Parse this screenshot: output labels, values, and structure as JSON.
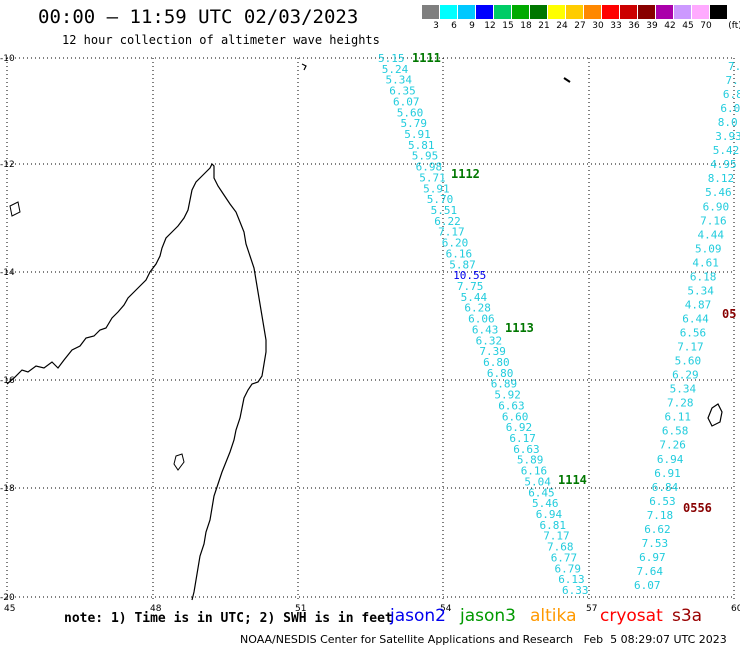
{
  "header": {
    "title": "00:00 — 11:59 UTC 02/03/2023",
    "subtitle": "12 hour collection of altimeter wave heights"
  },
  "colorbar": {
    "unit": "(ft)",
    "entries": [
      {
        "label": "3",
        "color": "#7f7f7f"
      },
      {
        "label": "6",
        "color": "#00ffff"
      },
      {
        "label": "9",
        "color": "#00c8ff"
      },
      {
        "label": "12",
        "color": "#0000ff"
      },
      {
        "label": "15",
        "color": "#00cc66"
      },
      {
        "label": "18",
        "color": "#00aa00"
      },
      {
        "label": "21",
        "color": "#007700"
      },
      {
        "label": "24",
        "color": "#ffff00"
      },
      {
        "label": "27",
        "color": "#ffcc00"
      },
      {
        "label": "30",
        "color": "#ff8800"
      },
      {
        "label": "33",
        "color": "#ff0000"
      },
      {
        "label": "36",
        "color": "#cc0000"
      },
      {
        "label": "39",
        "color": "#880000"
      },
      {
        "label": "42",
        "color": "#aa00aa"
      },
      {
        "label": "45",
        "color": "#cc99ff"
      },
      {
        "label": "70",
        "color": "#ffaaff"
      },
      {
        "label": "",
        "color": "#000000"
      }
    ]
  },
  "axes": {
    "lon_ticks": [
      "45",
      "48",
      "51",
      "54",
      "57",
      "60"
    ],
    "lat_ticks": [
      "-10",
      "-12",
      "-14",
      "-16",
      "-18",
      "-20"
    ]
  },
  "colors": {
    "cyan": "#22ccdd",
    "blue": "#0000ee",
    "green": "#007700",
    "darkred": "#880000"
  },
  "tracks": {
    "left_track": [
      {
        "v": "5.15",
        "c": "cyan"
      },
      {
        "v": "5.24",
        "c": "cyan"
      },
      {
        "v": "5.34",
        "c": "cyan"
      },
      {
        "v": "6.35",
        "c": "cyan"
      },
      {
        "v": "6.07",
        "c": "cyan"
      },
      {
        "v": "5.60",
        "c": "cyan"
      },
      {
        "v": "5.79",
        "c": "cyan"
      },
      {
        "v": "5.91",
        "c": "cyan"
      },
      {
        "v": "5.81",
        "c": "cyan"
      },
      {
        "v": "5.95",
        "c": "cyan"
      },
      {
        "v": "6.98",
        "c": "cyan"
      },
      {
        "v": "5.71",
        "c": "cyan"
      },
      {
        "v": "5.91",
        "c": "cyan"
      },
      {
        "v": "5.70",
        "c": "cyan"
      },
      {
        "v": "5.51",
        "c": "cyan"
      },
      {
        "v": "6.22",
        "c": "cyan"
      },
      {
        "v": "7.17",
        "c": "cyan"
      },
      {
        "v": "6.20",
        "c": "cyan"
      },
      {
        "v": "6.16",
        "c": "cyan"
      },
      {
        "v": "5.87",
        "c": "cyan"
      },
      {
        "v": "10.55",
        "c": "blue"
      },
      {
        "v": "7.75",
        "c": "cyan"
      },
      {
        "v": "5.44",
        "c": "cyan"
      },
      {
        "v": "6.28",
        "c": "cyan"
      },
      {
        "v": "6.06",
        "c": "cyan"
      },
      {
        "v": "6.43",
        "c": "cyan"
      },
      {
        "v": "6.32",
        "c": "cyan"
      },
      {
        "v": "7.39",
        "c": "cyan"
      },
      {
        "v": "6.80",
        "c": "cyan"
      },
      {
        "v": "6.80",
        "c": "cyan"
      },
      {
        "v": "6.89",
        "c": "cyan"
      },
      {
        "v": "5.92",
        "c": "cyan"
      },
      {
        "v": "6.63",
        "c": "cyan"
      },
      {
        "v": "6.60",
        "c": "cyan"
      },
      {
        "v": "6.92",
        "c": "cyan"
      },
      {
        "v": "6.17",
        "c": "cyan"
      },
      {
        "v": "6.63",
        "c": "cyan"
      },
      {
        "v": "5.89",
        "c": "cyan"
      },
      {
        "v": "6.16",
        "c": "cyan"
      },
      {
        "v": "5.04",
        "c": "cyan"
      },
      {
        "v": "6.45",
        "c": "cyan"
      },
      {
        "v": "5.46",
        "c": "cyan"
      },
      {
        "v": "6.94",
        "c": "cyan"
      },
      {
        "v": "6.81",
        "c": "cyan"
      },
      {
        "v": "7.17",
        "c": "cyan"
      },
      {
        "v": "7.68",
        "c": "cyan"
      },
      {
        "v": "6.77",
        "c": "cyan"
      },
      {
        "v": "6.79",
        "c": "cyan"
      },
      {
        "v": "6.13",
        "c": "cyan"
      },
      {
        "v": "6.33",
        "c": "cyan"
      }
    ],
    "right_track": [
      {
        "v": "6.07",
        "c": "cyan"
      },
      {
        "v": "7.64",
        "c": "cyan"
      },
      {
        "v": "6.97",
        "c": "cyan"
      },
      {
        "v": "7.53",
        "c": "cyan"
      },
      {
        "v": "6.62",
        "c": "cyan"
      },
      {
        "v": "7.18",
        "c": "cyan"
      },
      {
        "v": "6.53",
        "c": "cyan"
      },
      {
        "v": "6.84",
        "c": "cyan"
      },
      {
        "v": "6.91",
        "c": "cyan"
      },
      {
        "v": "6.94",
        "c": "cyan"
      },
      {
        "v": "7.26",
        "c": "cyan"
      },
      {
        "v": "6.58",
        "c": "cyan"
      },
      {
        "v": "6.11",
        "c": "cyan"
      },
      {
        "v": "7.28",
        "c": "cyan"
      },
      {
        "v": "5.34",
        "c": "cyan"
      },
      {
        "v": "6.29",
        "c": "cyan"
      },
      {
        "v": "5.60",
        "c": "cyan"
      },
      {
        "v": "7.17",
        "c": "cyan"
      },
      {
        "v": "6.56",
        "c": "cyan"
      },
      {
        "v": "6.44",
        "c": "cyan"
      },
      {
        "v": "4.87",
        "c": "cyan"
      },
      {
        "v": "5.34",
        "c": "cyan"
      },
      {
        "v": "6.18",
        "c": "cyan"
      },
      {
        "v": "4.61",
        "c": "cyan"
      },
      {
        "v": "5.09",
        "c": "cyan"
      },
      {
        "v": "4.44",
        "c": "cyan"
      },
      {
        "v": "7.16",
        "c": "cyan"
      },
      {
        "v": "6.90",
        "c": "cyan"
      },
      {
        "v": "5.46",
        "c": "cyan"
      },
      {
        "v": "8.12",
        "c": "cyan"
      },
      {
        "v": "4.95",
        "c": "cyan"
      },
      {
        "v": "5.42",
        "c": "cyan"
      },
      {
        "v": "3.93",
        "c": "cyan"
      },
      {
        "v": "8.0",
        "c": "cyan"
      },
      {
        "v": "6.0",
        "c": "cyan"
      },
      {
        "v": "6.8",
        "c": "cyan"
      },
      {
        "v": "7.",
        "c": "cyan"
      },
      {
        "v": "7.",
        "c": "cyan"
      }
    ],
    "pass_labels": [
      {
        "id": "1111",
        "c": "green"
      },
      {
        "id": "1112",
        "c": "green"
      },
      {
        "id": "1113",
        "c": "green"
      },
      {
        "id": "1114",
        "c": "green"
      },
      {
        "id": "0556",
        "c": "darkred"
      },
      {
        "id": "05",
        "c": "darkred"
      }
    ]
  },
  "footer": {
    "note": "note: 1) Time is in UTC; 2) SWH is in feet",
    "satellites": [
      {
        "name": "jason2",
        "color": "#0000ee"
      },
      {
        "name": "jason3",
        "color": "#009900"
      },
      {
        "name": "altika",
        "color": "#ff9900"
      },
      {
        "name": "cryosat",
        "color": "#ff0000"
      },
      {
        "name": "s3a",
        "color": "#990000"
      }
    ],
    "credit": "NOAA/NESDIS Center for Satellite Applications and Research   Feb  5 08:29:07 UTC 2023"
  }
}
